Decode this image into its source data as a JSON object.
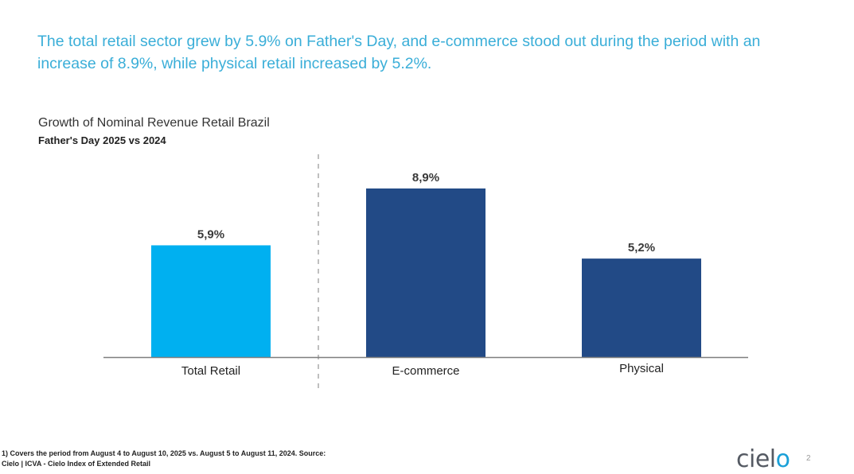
{
  "headline": "The total retail sector grew by 5.9% on Father's Day, and e-commerce stood out during the period with an increase of 8.9%, while physical retail increased by 5.2%.",
  "chart_data": {
    "type": "bar",
    "title": "Growth of Nominal Revenue Retail Brazil",
    "subtitle": "Father's Day 2025 vs 2024",
    "categories": [
      "Total Retail",
      "E-commerce",
      "Physical"
    ],
    "values": [
      5.9,
      8.9,
      5.2
    ],
    "data_labels": [
      "5,9%",
      "8,9%",
      "5,2%"
    ],
    "colors": [
      "#00b0f0",
      "#224a86",
      "#224a86"
    ],
    "xlabel": "",
    "ylabel": "",
    "ylim": [
      0,
      10
    ],
    "grid": false,
    "separator_after": "Total Retail"
  },
  "footnote": "1) Covers the period from August 4 to August 10, 2025 vs. August 5 to August 11, 2024. Source: Cielo | ICVA - Cielo Index of Extended Retail",
  "logo": {
    "text_main": "ciel",
    "text_accent": "o"
  },
  "page_number": "2"
}
